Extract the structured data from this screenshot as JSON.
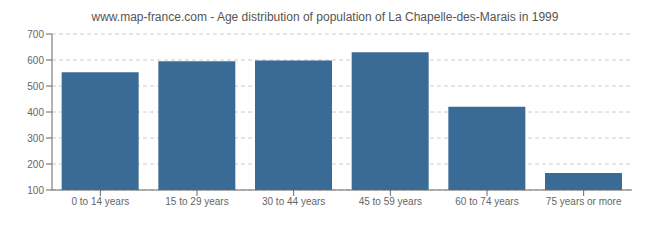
{
  "chart_data": {
    "type": "bar",
    "title": "www.map-france.com - Age distribution of population of La Chapelle-des-Marais in 1999",
    "categories": [
      "0 to 14 years",
      "15 to 29 years",
      "30 to 44 years",
      "45 to 59 years",
      "60 to 74 years",
      "75 years or more"
    ],
    "values": [
      553,
      595,
      598,
      630,
      420,
      165
    ],
    "color": "#3a6b96",
    "ylim": [
      100,
      700
    ],
    "yticks": [
      100,
      200,
      300,
      400,
      500,
      600,
      700
    ],
    "grid": true
  }
}
